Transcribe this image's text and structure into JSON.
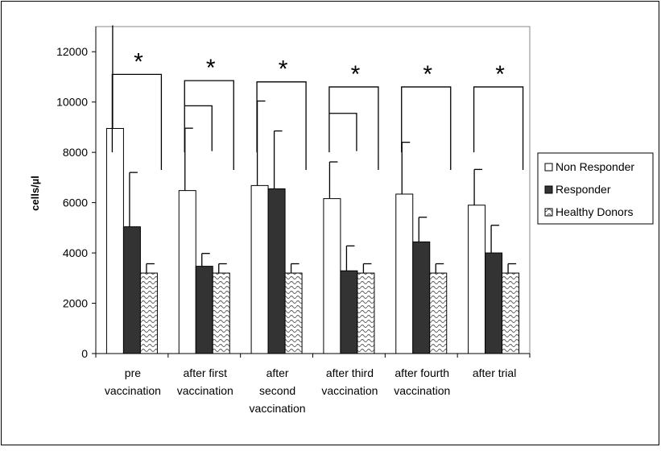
{
  "chart_data": {
    "type": "bar",
    "ylabel": "cells/µl",
    "ylim": [
      0,
      13000
    ],
    "yticks": [
      0,
      2000,
      4000,
      6000,
      8000,
      10000,
      12000
    ],
    "yticks_text": [
      "0",
      "2000",
      "4000",
      "6000",
      "8000",
      "10000",
      "12000"
    ],
    "grid": false,
    "legend_position": "right",
    "categories": [
      [
        "pre",
        "vaccination"
      ],
      [
        "after first",
        "vaccination"
      ],
      [
        "after",
        "second",
        "vaccination"
      ],
      [
        "after third",
        "vaccination"
      ],
      [
        "after fourth",
        "vaccination"
      ],
      [
        "after trial"
      ]
    ],
    "series": [
      {
        "name": "Non Responder",
        "fill": "#ffffff",
        "pattern": "none",
        "values": [
          8950,
          6480,
          6680,
          6160,
          6340,
          5900
        ],
        "error_up": [
          4100,
          2480,
          3360,
          1460,
          2060,
          1420
        ]
      },
      {
        "name": "Responder",
        "fill": "#333333",
        "pattern": "none",
        "values": [
          5040,
          3470,
          6550,
          3290,
          4440,
          4000
        ],
        "error_up": [
          2160,
          510,
          2300,
          990,
          980,
          1100
        ]
      },
      {
        "name": "Healthy Donors",
        "fill": "#ffffff",
        "pattern": "wave",
        "values": [
          3200,
          3200,
          3200,
          3200,
          3200,
          3200
        ],
        "error_up": [
          370,
          370,
          370,
          370,
          370,
          370
        ]
      }
    ],
    "significance": [
      {
        "group": 0,
        "label": "*",
        "outer_top": 11100,
        "inner_top": null
      },
      {
        "group": 1,
        "label": "*",
        "outer_top": 10850,
        "inner_top": 9850
      },
      {
        "group": 2,
        "label": "*",
        "outer_top": 10800,
        "inner_top": null
      },
      {
        "group": 3,
        "label": "*",
        "outer_top": 10600,
        "inner_top": 9550
      },
      {
        "group": 4,
        "label": "*",
        "outer_top": 10600,
        "inner_top": null
      },
      {
        "group": 5,
        "label": "*",
        "outer_top": 10600,
        "inner_top": null
      }
    ]
  }
}
